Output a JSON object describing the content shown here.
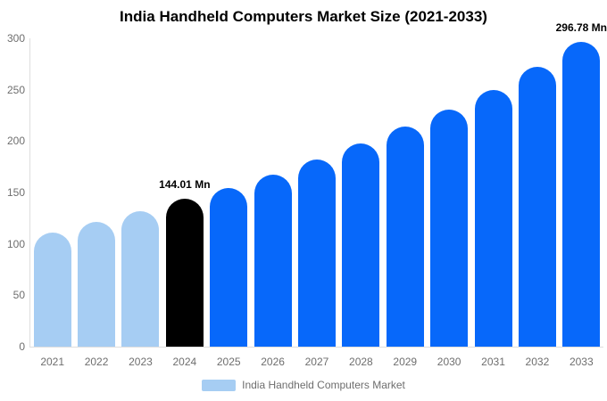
{
  "chart_data": {
    "type": "bar",
    "title": "India Handheld Computers Market Size (2021-2033)",
    "categories": [
      "2021",
      "2022",
      "2023",
      "2024",
      "2025",
      "2026",
      "2027",
      "2028",
      "2029",
      "2030",
      "2031",
      "2032",
      "2033"
    ],
    "series": [
      {
        "name": "India Handheld Computers Market",
        "values": [
          111,
          121,
          132,
          144.01,
          154,
          167,
          182,
          198,
          214,
          231,
          250,
          272,
          296.78
        ]
      }
    ],
    "bar_colors": [
      "#A6CDF3",
      "#A6CDF3",
      "#A6CDF3",
      "#000000",
      "#0768FA",
      "#0768FA",
      "#0768FA",
      "#0768FA",
      "#0768FA",
      "#0768FA",
      "#0768FA",
      "#0768FA",
      "#0768FA"
    ],
    "annotations": [
      {
        "category": "2024",
        "text": "144.01 Mn"
      },
      {
        "category": "2033",
        "text": "296.78 Mn"
      }
    ],
    "xlabel": "",
    "ylabel": "",
    "ylim": [
      0,
      300
    ],
    "yticks": [
      0,
      50,
      100,
      150,
      200,
      250,
      300
    ],
    "grid": false,
    "legend": {
      "position": "bottom",
      "items": [
        {
          "label": "India Handheld Computers Market",
          "swatch_color": "#A6CDF3"
        }
      ]
    },
    "colors": {
      "historical_bar": "#A6CDF3",
      "base_year_bar": "#000000",
      "forecast_bar": "#0768FA",
      "axis_line": "#dedede",
      "tick_text": "#6e6e6e",
      "title_text": "#000000",
      "annotation_text": "#000000"
    }
  }
}
